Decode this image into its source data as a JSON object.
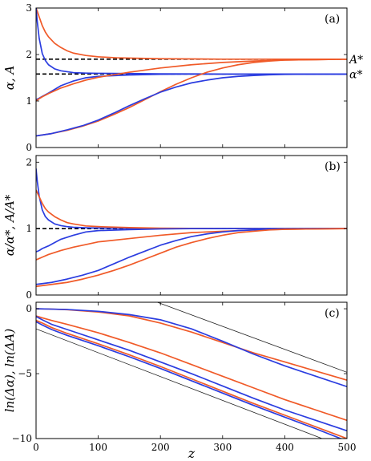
{
  "figure": {
    "xlabel": "z"
  },
  "chart_data": [
    {
      "type": "line",
      "panel_label": "(a)",
      "ylabel": "α, A",
      "xlim": [
        0,
        500
      ],
      "ylim": [
        0,
        3
      ],
      "x_ticks": [
        "0",
        "100",
        "200",
        "300",
        "400",
        "500"
      ],
      "y_ticks": [
        "0",
        "1",
        "2",
        "3"
      ],
      "reference_lines": [
        {
          "y": 1.9,
          "label": "A*"
        },
        {
          "y": 1.58,
          "label": "α*"
        }
      ],
      "colors": {
        "blue": "#2b3de0",
        "orange": "#f05a28"
      },
      "series": [
        {
          "color": "orange",
          "x": [
            0,
            2,
            5,
            10,
            15,
            20,
            30,
            40,
            50,
            60,
            80,
            100,
            130,
            160,
            200,
            250,
            300,
            400,
            500
          ],
          "y": [
            3.0,
            2.93,
            2.81,
            2.62,
            2.48,
            2.38,
            2.24,
            2.15,
            2.08,
            2.03,
            1.98,
            1.95,
            1.93,
            1.92,
            1.91,
            1.905,
            1.9,
            1.9,
            1.9
          ]
        },
        {
          "color": "blue",
          "x": [
            0,
            2,
            5,
            10,
            15,
            20,
            30,
            40,
            50,
            60,
            80,
            100,
            150,
            200,
            300,
            400,
            500
          ],
          "y": [
            3.0,
            2.7,
            2.35,
            2.02,
            1.87,
            1.78,
            1.69,
            1.65,
            1.63,
            1.61,
            1.6,
            1.595,
            1.59,
            1.585,
            1.58,
            1.58,
            1.58
          ]
        },
        {
          "color": "blue",
          "x": [
            0,
            5,
            10,
            20,
            30,
            40,
            60,
            80,
            100,
            150,
            200,
            250,
            300,
            400,
            500
          ],
          "y": [
            1.03,
            1.06,
            1.1,
            1.17,
            1.25,
            1.33,
            1.43,
            1.5,
            1.53,
            1.56,
            1.575,
            1.58,
            1.58,
            1.58,
            1.58
          ]
        },
        {
          "color": "orange",
          "x": [
            0,
            5,
            10,
            20,
            30,
            40,
            60,
            80,
            100,
            150,
            200,
            250,
            300,
            350,
            400,
            450,
            500
          ],
          "y": [
            1.0,
            1.05,
            1.09,
            1.16,
            1.22,
            1.28,
            1.37,
            1.45,
            1.51,
            1.62,
            1.71,
            1.78,
            1.83,
            1.86,
            1.88,
            1.89,
            1.9
          ]
        },
        {
          "color": "orange",
          "x": [
            0,
            25,
            50,
            75,
            100,
            125,
            150,
            175,
            200,
            225,
            250,
            275,
            300,
            325,
            350,
            375,
            400,
            450,
            500
          ],
          "y": [
            0.25,
            0.3,
            0.37,
            0.46,
            0.57,
            0.71,
            0.86,
            1.03,
            1.2,
            1.36,
            1.5,
            1.62,
            1.71,
            1.78,
            1.83,
            1.86,
            1.88,
            1.89,
            1.9
          ]
        },
        {
          "color": "blue",
          "x": [
            0,
            25,
            50,
            75,
            100,
            125,
            150,
            175,
            200,
            225,
            250,
            275,
            300,
            325,
            350,
            375,
            400,
            450,
            500
          ],
          "y": [
            0.25,
            0.3,
            0.38,
            0.47,
            0.59,
            0.74,
            0.9,
            1.05,
            1.19,
            1.3,
            1.39,
            1.45,
            1.5,
            1.53,
            1.55,
            1.565,
            1.572,
            1.578,
            1.58
          ]
        }
      ]
    },
    {
      "type": "line",
      "panel_label": "(b)",
      "ylabel": "α/α*, A/A*",
      "xlim": [
        0,
        500
      ],
      "ylim": [
        0,
        2.1
      ],
      "x_ticks": [
        "0",
        "100",
        "200",
        "300",
        "400",
        "500"
      ],
      "y_ticks": [
        "0",
        "1",
        "2"
      ],
      "reference_lines": [
        {
          "y": 1.0,
          "label": ""
        }
      ],
      "series": [
        {
          "color": "blue",
          "x": [
            0,
            2,
            5,
            10,
            15,
            20,
            30,
            40,
            50,
            60,
            80,
            100,
            150,
            200,
            300,
            500
          ],
          "y": [
            1.9,
            1.71,
            1.49,
            1.28,
            1.18,
            1.13,
            1.07,
            1.045,
            1.03,
            1.02,
            1.012,
            1.008,
            1.004,
            1.002,
            1.0,
            1.0
          ]
        },
        {
          "color": "orange",
          "x": [
            0,
            2,
            5,
            10,
            15,
            20,
            30,
            40,
            50,
            60,
            80,
            100,
            150,
            200,
            300,
            500
          ],
          "y": [
            1.58,
            1.54,
            1.48,
            1.38,
            1.3,
            1.25,
            1.18,
            1.13,
            1.09,
            1.07,
            1.04,
            1.03,
            1.015,
            1.006,
            1.0,
            1.0
          ]
        },
        {
          "color": "blue",
          "x": [
            0,
            5,
            10,
            20,
            30,
            40,
            60,
            80,
            100,
            150,
            200,
            250,
            300,
            400,
            500
          ],
          "y": [
            0.65,
            0.67,
            0.7,
            0.74,
            0.79,
            0.84,
            0.9,
            0.95,
            0.97,
            0.985,
            0.995,
            1.0,
            1.0,
            1.0,
            1.0
          ]
        },
        {
          "color": "orange",
          "x": [
            0,
            5,
            10,
            20,
            30,
            40,
            60,
            80,
            100,
            150,
            200,
            250,
            300,
            350,
            400,
            450,
            500
          ],
          "y": [
            0.53,
            0.55,
            0.57,
            0.61,
            0.64,
            0.67,
            0.72,
            0.76,
            0.8,
            0.85,
            0.9,
            0.94,
            0.96,
            0.98,
            0.99,
            0.995,
            1.0
          ]
        },
        {
          "color": "blue",
          "x": [
            0,
            25,
            50,
            75,
            100,
            125,
            150,
            175,
            200,
            225,
            250,
            275,
            300,
            325,
            350,
            375,
            400,
            450,
            500
          ],
          "y": [
            0.16,
            0.19,
            0.24,
            0.3,
            0.37,
            0.47,
            0.57,
            0.66,
            0.75,
            0.82,
            0.88,
            0.92,
            0.95,
            0.97,
            0.98,
            0.99,
            0.995,
            1.0,
            1.0
          ]
        },
        {
          "color": "orange",
          "x": [
            0,
            25,
            50,
            75,
            100,
            125,
            150,
            175,
            200,
            225,
            250,
            275,
            300,
            325,
            350,
            375,
            400,
            450,
            500
          ],
          "y": [
            0.13,
            0.16,
            0.19,
            0.24,
            0.3,
            0.37,
            0.45,
            0.54,
            0.63,
            0.72,
            0.79,
            0.85,
            0.9,
            0.94,
            0.96,
            0.98,
            0.99,
            0.995,
            1.0
          ]
        }
      ]
    },
    {
      "type": "line",
      "panel_label": "(c)",
      "ylabel": "ln(Δα), ln(ΔA)",
      "xlim": [
        0,
        500
      ],
      "ylim": [
        -10,
        0.5
      ],
      "x_ticks": [
        "0",
        "100",
        "200",
        "300",
        "400",
        "500"
      ],
      "y_ticks": [
        "0",
        "−5",
        "−10"
      ],
      "series": [
        {
          "color": "gray",
          "x": [
            195,
            500
          ],
          "y": [
            0.5,
            -4.9
          ]
        },
        {
          "color": "gray",
          "x": [
            0,
            460
          ],
          "y": [
            -1.55,
            -10.0
          ]
        },
        {
          "color": "orange",
          "x": [
            0,
            20,
            50,
            100,
            150,
            200,
            250,
            300,
            350,
            400,
            450,
            500
          ],
          "y": [
            0.0,
            -0.02,
            -0.07,
            -0.25,
            -0.55,
            -1.1,
            -1.8,
            -2.6,
            -3.4,
            -4.1,
            -4.8,
            -5.5
          ]
        },
        {
          "color": "blue",
          "x": [
            0,
            20,
            50,
            100,
            150,
            200,
            250,
            300,
            350,
            400,
            450,
            500
          ],
          "y": [
            0.0,
            -0.02,
            -0.06,
            -0.2,
            -0.45,
            -0.85,
            -1.55,
            -2.5,
            -3.5,
            -4.4,
            -5.2,
            -6.0
          ]
        },
        {
          "color": "orange",
          "x": [
            0,
            10,
            25,
            50,
            100,
            150,
            200,
            250,
            300,
            350,
            400,
            450,
            500
          ],
          "y": [
            -0.55,
            -0.7,
            -0.9,
            -1.2,
            -1.85,
            -2.6,
            -3.4,
            -4.3,
            -5.2,
            -6.1,
            -7.0,
            -7.8,
            -8.6
          ]
        },
        {
          "color": "blue",
          "x": [
            0,
            10,
            25,
            50,
            100,
            150,
            200,
            250,
            300,
            350,
            400,
            450,
            500
          ],
          "y": [
            -0.6,
            -0.85,
            -1.2,
            -1.6,
            -2.4,
            -3.2,
            -4.1,
            -5.0,
            -5.95,
            -6.9,
            -7.8,
            -8.6,
            -9.4
          ]
        },
        {
          "color": "orange",
          "x": [
            0,
            10,
            25,
            50,
            100,
            150,
            200,
            250,
            300,
            350,
            400,
            450,
            500
          ],
          "y": [
            -0.9,
            -1.1,
            -1.45,
            -1.9,
            -2.7,
            -3.55,
            -4.45,
            -5.4,
            -6.35,
            -7.3,
            -8.2,
            -9.1,
            -10.0
          ]
        },
        {
          "color": "blue",
          "x": [
            0,
            10,
            25,
            50,
            100,
            150,
            200,
            250,
            300,
            350,
            400,
            450,
            490
          ],
          "y": [
            -1.0,
            -1.25,
            -1.6,
            -2.05,
            -2.85,
            -3.7,
            -4.6,
            -5.55,
            -6.5,
            -7.45,
            -8.35,
            -9.25,
            -10.0
          ]
        }
      ]
    }
  ]
}
